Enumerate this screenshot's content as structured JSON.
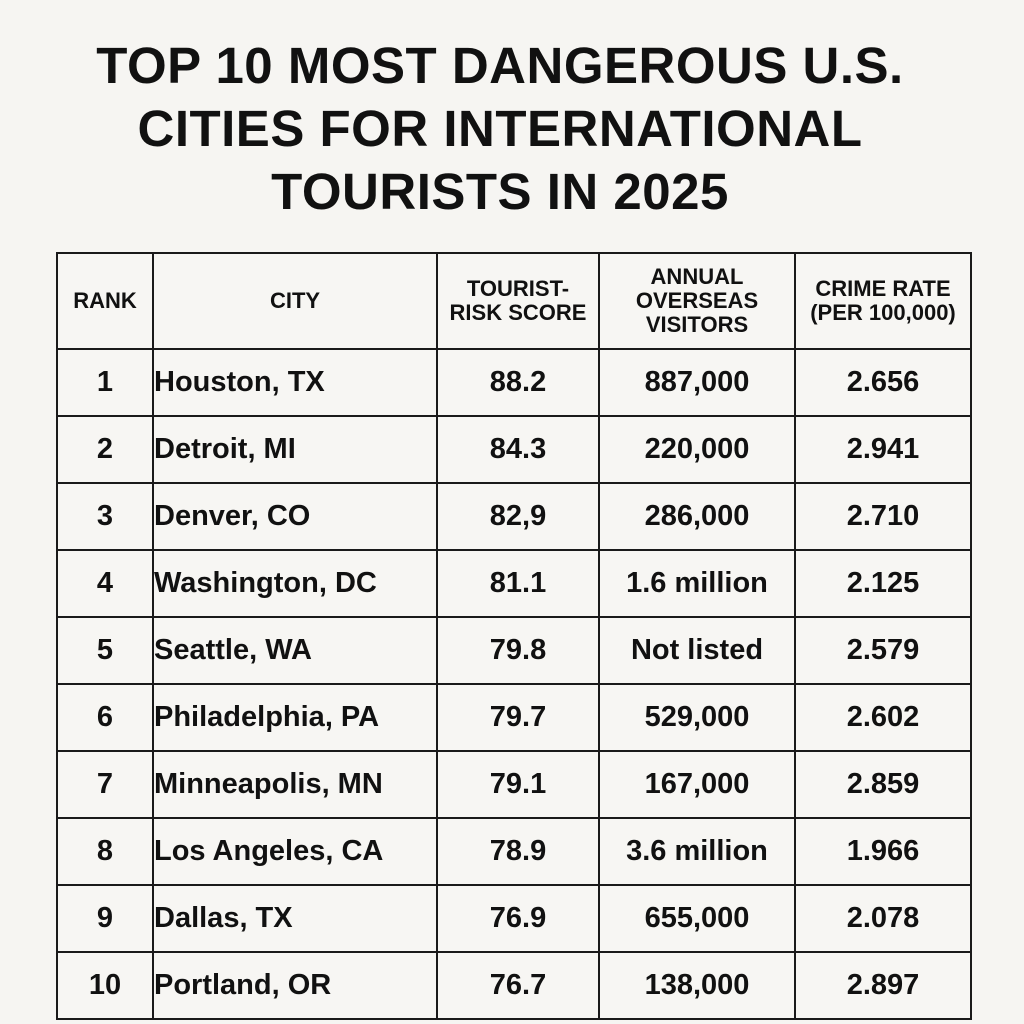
{
  "title": {
    "lines": [
      "TOP 10 MOST DANGEROUS U.S.",
      "CITIES FOR INTERNATIONAL",
      "TOURISTS IN 2025"
    ]
  },
  "table": {
    "headers": [
      [
        "RANK"
      ],
      [
        "CITY"
      ],
      [
        "TOURIST-",
        "RISK SCORE"
      ],
      [
        "ANNUAL",
        "OVERSEAS",
        "VISITORS"
      ],
      [
        "CRIME RATE",
        "(PER 100,000)"
      ]
    ],
    "rows": [
      {
        "rank": "1",
        "city": "Houston, TX",
        "score": "88.2",
        "visitors": "887,000",
        "crime": "2.656"
      },
      {
        "rank": "2",
        "city": "Detroit, MI",
        "score": "84.3",
        "visitors": "220,000",
        "crime": "2.941"
      },
      {
        "rank": "3",
        "city": "Denver, CO",
        "score": "82,9",
        "visitors": "286,000",
        "crime": "2.710"
      },
      {
        "rank": "4",
        "city": "Washington, DC",
        "score": "81.1",
        "visitors": "1.6 million",
        "crime": "2.125"
      },
      {
        "rank": "5",
        "city": "Seattle, WA",
        "score": "79.8",
        "visitors": "Not listed",
        "crime": "2.579"
      },
      {
        "rank": "6",
        "city": "Philadelphia, PA",
        "score": "79.7",
        "visitors": "529,000",
        "crime": "2.602"
      },
      {
        "rank": "7",
        "city": "Minneapolis, MN",
        "score": "79.1",
        "visitors": "167,000",
        "crime": "2.859"
      },
      {
        "rank": "8",
        "city": "Los Angeles, CA",
        "score": "78.9",
        "visitors": "3.6 million",
        "crime": "1.966"
      },
      {
        "rank": "9",
        "city": "Dallas, TX",
        "score": "76.9",
        "visitors": "655,000",
        "crime": "2.078"
      },
      {
        "rank": "10",
        "city": "Portland, OR",
        "score": "76.7",
        "visitors": "138,000",
        "crime": "2.897"
      }
    ]
  }
}
